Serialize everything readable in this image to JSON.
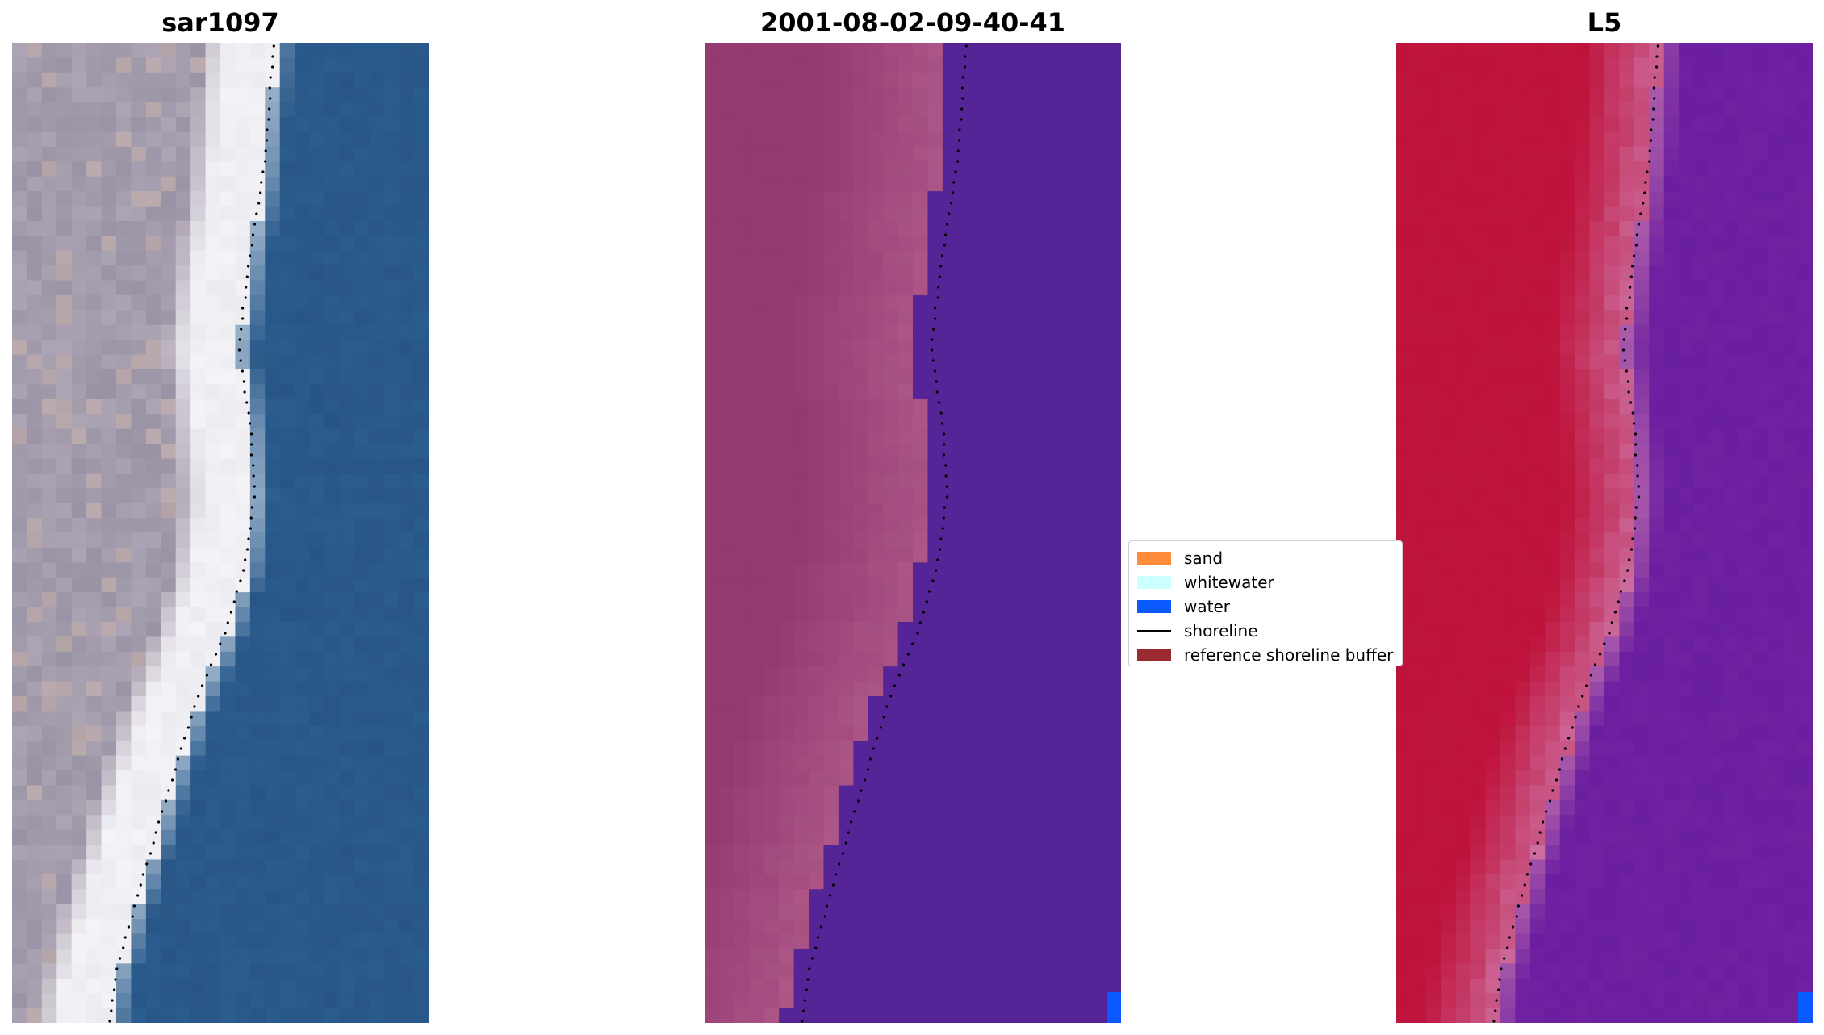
{
  "panels": [
    {
      "title": "sar1097",
      "render": "rgb"
    },
    {
      "title": "2001-08-02-09-40-41",
      "render": "classified"
    },
    {
      "title": "L5",
      "render": "ndwi"
    }
  ],
  "legend": {
    "items": [
      {
        "label": "sand",
        "type": "patch",
        "color": "#ff8c3a"
      },
      {
        "label": "whitewater",
        "type": "patch",
        "color": "#ccffff"
      },
      {
        "label": "water",
        "type": "patch",
        "color": "#0a5aff"
      },
      {
        "label": "shoreline",
        "type": "line",
        "color": "#000000"
      },
      {
        "label": "reference shoreline buffer",
        "type": "patch",
        "color": "#9a2a30"
      }
    ]
  },
  "colors": {
    "water_rgb": "#2b5f92",
    "sand_rgb": "#b7aebc",
    "whitewater_rgb": "#f4f4f8",
    "classified_water": "#552597",
    "classified_land": "#b05a8a",
    "ndwi_land": "#c0133c",
    "ndwi_water": "#6a1ea0",
    "shoreline": "#000000"
  }
}
